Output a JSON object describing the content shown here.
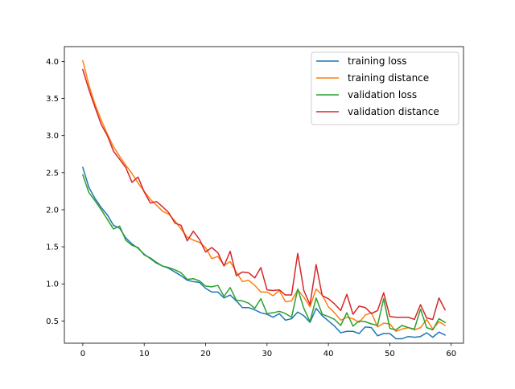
{
  "chart_data": {
    "type": "line",
    "title": "",
    "xlabel": "",
    "ylabel": "",
    "xlim": [
      -3,
      62
    ],
    "ylim": [
      0.2,
      4.2
    ],
    "xticks": [
      0,
      10,
      20,
      30,
      40,
      50,
      60
    ],
    "yticks": [
      0.5,
      1.0,
      1.5,
      2.0,
      2.5,
      3.0,
      3.5,
      4.0
    ],
    "xtick_labels": [
      "0",
      "10",
      "20",
      "30",
      "40",
      "50",
      "60"
    ],
    "ytick_labels": [
      "0.5",
      "1.0",
      "1.5",
      "2.0",
      "2.5",
      "3.0",
      "3.5",
      "4.0"
    ],
    "grid": false,
    "legend_position": "upper right",
    "x": [
      0,
      1,
      2,
      3,
      4,
      5,
      6,
      7,
      8,
      9,
      10,
      11,
      12,
      13,
      14,
      15,
      16,
      17,
      18,
      19,
      20,
      21,
      22,
      23,
      24,
      25,
      26,
      27,
      28,
      29,
      30,
      31,
      32,
      33,
      34,
      35,
      36,
      37,
      38,
      39,
      40,
      41,
      42,
      43,
      44,
      45,
      46,
      47,
      48,
      49,
      50,
      51,
      52,
      53,
      54,
      55,
      56,
      57,
      58,
      59
    ],
    "series": [
      {
        "name": "training loss",
        "color": "#1f77b4",
        "values": [
          2.57,
          2.3,
          2.15,
          2.03,
          1.93,
          1.79,
          1.75,
          1.62,
          1.54,
          1.48,
          1.4,
          1.34,
          1.28,
          1.24,
          1.21,
          1.16,
          1.11,
          1.05,
          1.03,
          1.02,
          0.94,
          0.89,
          0.89,
          0.81,
          0.85,
          0.77,
          0.68,
          0.68,
          0.65,
          0.61,
          0.59,
          0.55,
          0.6,
          0.51,
          0.53,
          0.62,
          0.57,
          0.48,
          0.67,
          0.57,
          0.5,
          0.43,
          0.34,
          0.36,
          0.36,
          0.33,
          0.42,
          0.41,
          0.3,
          0.33,
          0.33,
          0.26,
          0.26,
          0.29,
          0.28,
          0.29,
          0.34,
          0.28,
          0.35,
          0.31
        ]
      },
      {
        "name": "training distance",
        "color": "#ff7f0e",
        "values": [
          4.01,
          3.68,
          3.42,
          3.21,
          3.02,
          2.85,
          2.72,
          2.6,
          2.49,
          2.36,
          2.25,
          2.14,
          2.06,
          1.98,
          1.94,
          1.85,
          1.74,
          1.63,
          1.59,
          1.56,
          1.49,
          1.34,
          1.37,
          1.25,
          1.3,
          1.16,
          1.03,
          1.05,
          0.98,
          0.89,
          0.89,
          0.84,
          0.91,
          0.76,
          0.77,
          0.92,
          0.82,
          0.69,
          0.93,
          0.85,
          0.69,
          0.61,
          0.51,
          0.55,
          0.53,
          0.48,
          0.58,
          0.61,
          0.42,
          0.47,
          0.46,
          0.36,
          0.39,
          0.41,
          0.38,
          0.41,
          0.52,
          0.39,
          0.49,
          0.44
        ]
      },
      {
        "name": "validation loss",
        "color": "#2ca02c",
        "values": [
          2.47,
          2.23,
          2.12,
          2.0,
          1.87,
          1.74,
          1.78,
          1.59,
          1.52,
          1.49,
          1.39,
          1.35,
          1.29,
          1.24,
          1.22,
          1.19,
          1.15,
          1.06,
          1.07,
          1.04,
          0.97,
          0.96,
          0.98,
          0.83,
          0.95,
          0.78,
          0.77,
          0.74,
          0.67,
          0.8,
          0.6,
          0.61,
          0.63,
          0.6,
          0.55,
          0.93,
          0.67,
          0.49,
          0.81,
          0.59,
          0.56,
          0.52,
          0.44,
          0.61,
          0.43,
          0.5,
          0.49,
          0.46,
          0.44,
          0.8,
          0.4,
          0.38,
          0.44,
          0.41,
          0.39,
          0.66,
          0.41,
          0.38,
          0.53,
          0.48
        ]
      },
      {
        "name": "validation distance",
        "color": "#d62728",
        "values": [
          3.89,
          3.62,
          3.38,
          3.15,
          3.0,
          2.79,
          2.68,
          2.57,
          2.37,
          2.44,
          2.24,
          2.09,
          2.11,
          2.04,
          1.96,
          1.82,
          1.79,
          1.58,
          1.71,
          1.6,
          1.43,
          1.49,
          1.42,
          1.24,
          1.44,
          1.11,
          1.16,
          1.15,
          1.08,
          1.22,
          0.92,
          0.91,
          0.92,
          0.85,
          0.85,
          1.41,
          0.91,
          0.72,
          1.26,
          0.84,
          0.8,
          0.73,
          0.64,
          0.86,
          0.59,
          0.7,
          0.68,
          0.6,
          0.64,
          0.88,
          0.56,
          0.55,
          0.55,
          0.55,
          0.52,
          0.72,
          0.54,
          0.52,
          0.81,
          0.65
        ]
      }
    ]
  }
}
